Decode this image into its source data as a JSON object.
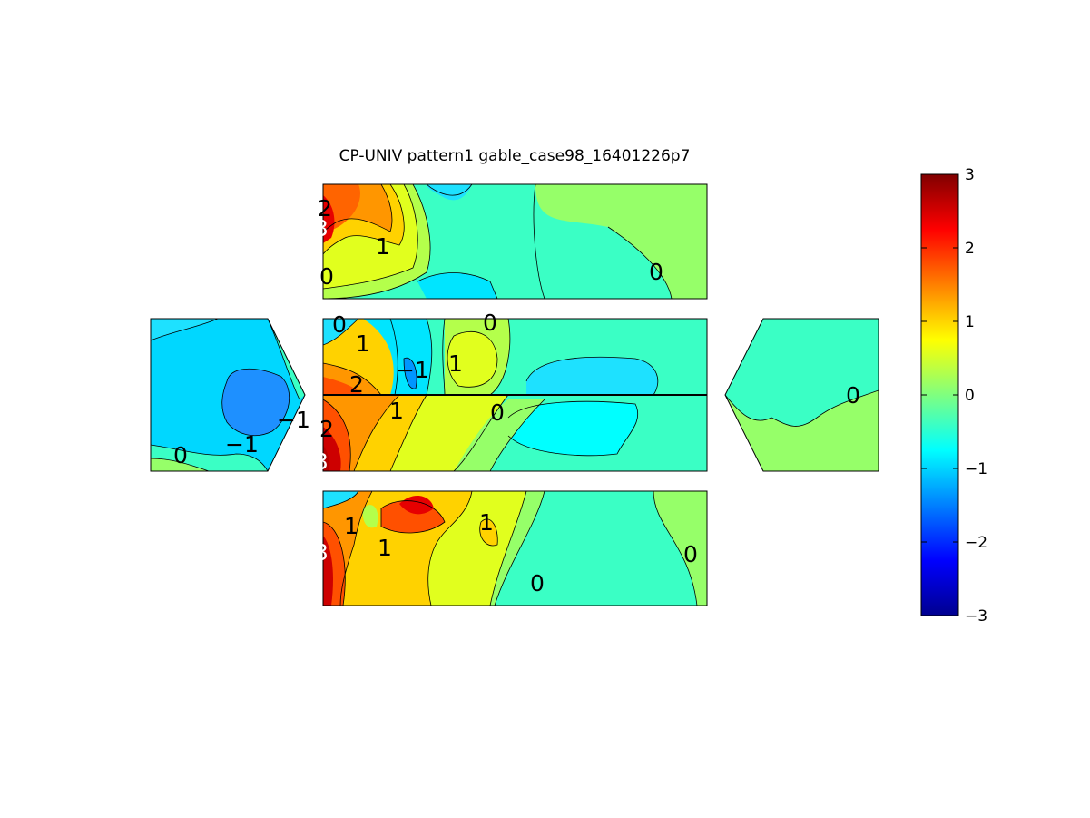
{
  "chart_data": {
    "type": "heatmap",
    "subtype": "filled contour map of pressure coefficient on building surfaces",
    "title": "CP-UNIV pattern1 gable_case98_16401226p7",
    "xlabel": "",
    "ylabel": "",
    "colormap": "jet",
    "color_range": [
      -3,
      3
    ],
    "colorbar_ticks": [
      "3",
      "2",
      "1",
      "0",
      "−1",
      "−2",
      "−3"
    ],
    "colorbar_ticks_values": [
      3,
      2,
      1,
      0,
      -1,
      -2,
      -3
    ],
    "grid": false,
    "legend_position": "right",
    "panels": [
      {
        "name": "top-wall",
        "contour_labels": [
          "2",
          "3",
          "1",
          "0",
          "0"
        ],
        "contour_label_values": [
          2,
          3,
          1,
          0,
          0
        ]
      },
      {
        "name": "roof-upper",
        "contour_labels": [
          "0",
          "1",
          "−1",
          "1",
          "0",
          "2"
        ],
        "contour_label_values": [
          0,
          1,
          -1,
          1,
          0,
          2
        ]
      },
      {
        "name": "roof-lower",
        "contour_labels": [
          "1",
          "0",
          "2",
          "3"
        ],
        "contour_label_values": [
          1,
          0,
          2,
          3
        ]
      },
      {
        "name": "bottom-wall",
        "contour_labels": [
          "1",
          "1",
          "3",
          "1",
          "0",
          "0"
        ],
        "contour_label_values": [
          1,
          1,
          3,
          1,
          0,
          0
        ]
      },
      {
        "name": "left-gable",
        "contour_labels": [
          "−1",
          "−1",
          "0"
        ],
        "contour_label_values": [
          -1,
          -1,
          0
        ]
      },
      {
        "name": "right-gable",
        "contour_labels": [
          "0"
        ],
        "contour_label_values": [
          0
        ]
      }
    ]
  }
}
